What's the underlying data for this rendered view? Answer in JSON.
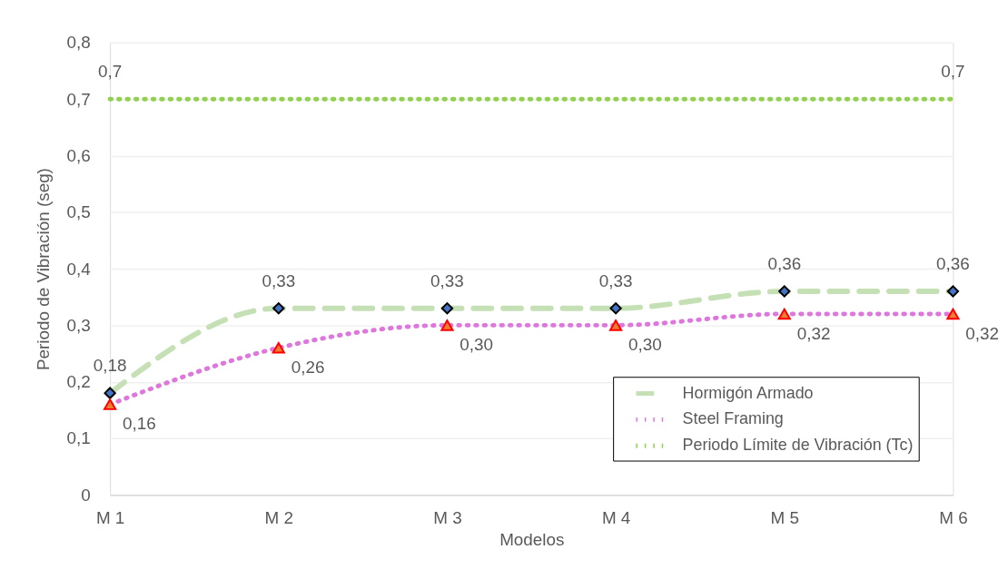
{
  "chart_data": {
    "type": "line",
    "xlabel": "Modelos",
    "ylabel": "Periodo de Vibración (seg)",
    "categories": [
      "M 1",
      "M 2",
      "M 3",
      "M 4",
      "M 5",
      "M 6"
    ],
    "series": [
      {
        "name": "Hormigón Armado",
        "color": "#c5e0b4",
        "line_style": "dashed",
        "marker": "diamond",
        "colors": [
          "#4472c4",
          "#4472c4",
          "#4472c4",
          "#4472c4",
          "#4472c4",
          "#4472c4"
        ],
        "values": [
          0.18,
          0.33,
          0.33,
          0.33,
          0.36,
          0.36
        ],
        "value_labels": [
          "0,18",
          "0,33",
          "0,33",
          "0,33",
          "0,36",
          "0,36"
        ]
      },
      {
        "name": "Steel Framing",
        "color": "#dd77dd",
        "line_style": "dotted",
        "marker": "triangle",
        "colors": [
          "#ed7d31",
          "#ed7d31",
          "#ed7d31",
          "#ed7d31",
          "#ed7d31",
          "#ed7d31"
        ],
        "values": [
          0.16,
          0.26,
          0.3,
          0.3,
          0.32,
          0.32
        ],
        "value_labels": [
          "0,16",
          "0,26",
          "0,30",
          "0,30",
          "0,32",
          "0,32"
        ]
      },
      {
        "name": "Periodo Límite de Vibración (Tc)",
        "color": "#92d050",
        "line_style": "dotted",
        "marker": "none",
        "values": [
          0.7,
          0.7,
          0.7,
          0.7,
          0.7,
          0.7
        ],
        "value_labels": [
          "0,7",
          null,
          null,
          null,
          null,
          "0,7"
        ]
      }
    ],
    "ylim": [
      0,
      0.8
    ],
    "yticks": [
      0,
      {
        "value": 0.1,
        "label": "0,1"
      },
      {
        "value": 0.2,
        "label": "0,2"
      },
      {
        "value": 0.3,
        "label": "0,3"
      },
      {
        "value": 0.4,
        "label": "0,4"
      },
      {
        "value": 0.5,
        "label": "0,5"
      },
      {
        "value": 0.6,
        "label": "0,6"
      },
      {
        "value": 0.7,
        "label": "0,7"
      },
      {
        "value": 0.8,
        "label": "0,8"
      }
    ],
    "grid": "y",
    "legend": "bottom right"
  }
}
